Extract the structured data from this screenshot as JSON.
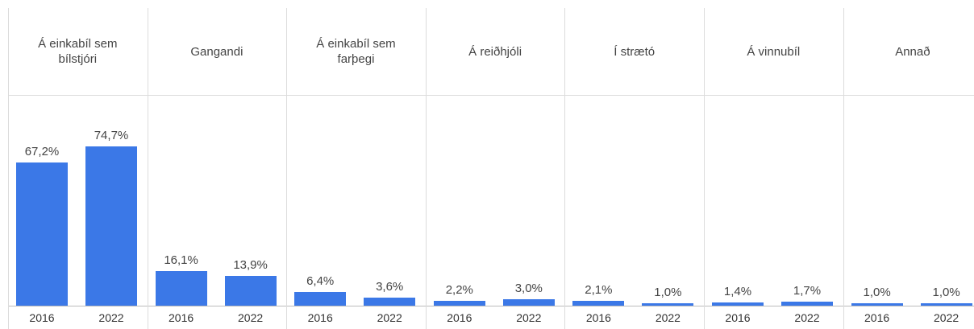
{
  "chart_data": {
    "type": "bar",
    "categories": [
      "Á einkabíl sem bílstjóri",
      "Gangandi",
      "Á einkabíl sem farþegi",
      "Á reiðhjóli",
      "Í strætó",
      "Á vinnubíl",
      "Annað"
    ],
    "series": [
      {
        "name": "2016",
        "color": "#3b78e7",
        "values": [
          67.2,
          16.1,
          6.4,
          2.2,
          2.1,
          1.4,
          1.0
        ],
        "value_labels": [
          "67,2%",
          "16,1%",
          "6,4%",
          "2,2%",
          "2,1%",
          "1,4%",
          "1,0%"
        ]
      },
      {
        "name": "2022",
        "color": "#3b78e7",
        "values": [
          74.7,
          13.9,
          3.6,
          3.0,
          1.0,
          1.7,
          1.0
        ],
        "value_labels": [
          "74,7%",
          "13,9%",
          "3,6%",
          "3,0%",
          "1,0%",
          "1,7%",
          "1,0%"
        ]
      }
    ]
  }
}
